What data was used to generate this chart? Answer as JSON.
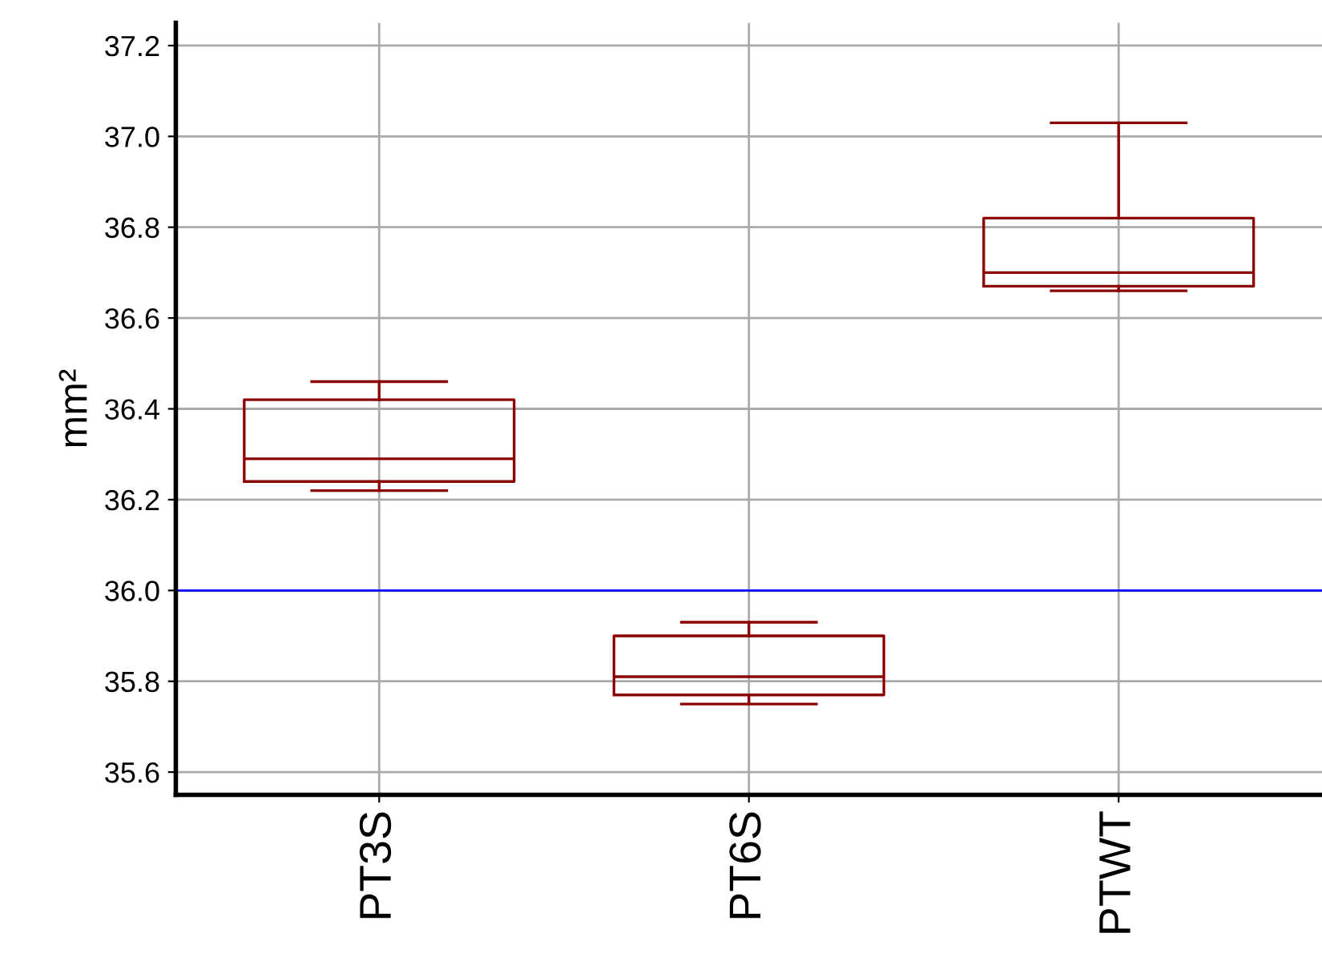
{
  "chart_data": {
    "type": "box",
    "ylabel": "mm²",
    "categories": [
      "PT3S",
      "PT6S",
      "PTWT"
    ],
    "series": [
      {
        "color": "#8b0000",
        "boxes": [
          {
            "low": 36.22,
            "q1": 36.24,
            "median": 36.29,
            "q3": 36.42,
            "high": 36.46
          },
          {
            "low": 35.75,
            "q1": 35.77,
            "median": 35.81,
            "q3": 35.9,
            "high": 35.93
          },
          {
            "low": 36.66,
            "q1": 36.67,
            "median": 36.7,
            "q3": 36.82,
            "high": 37.03
          }
        ]
      }
    ],
    "ylim": [
      35.55,
      37.25
    ],
    "yticks": [
      35.6,
      35.8,
      {
        "value": 36.0,
        "label": "36.0"
      },
      36.2,
      36.4,
      36.6,
      36.8,
      {
        "value": 37.0,
        "label": "37.0"
      },
      37.2
    ],
    "ref_lines": [
      {
        "axis": "y",
        "value": 36.0,
        "color": "#0000ff"
      }
    ],
    "grid": true
  }
}
